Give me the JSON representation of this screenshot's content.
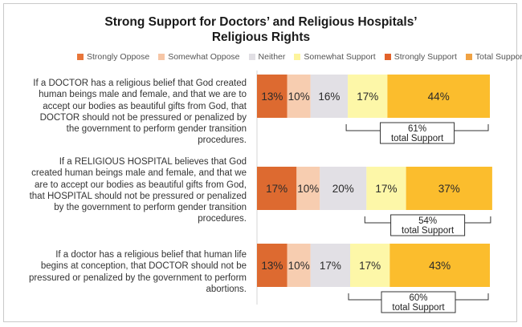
{
  "title_line1": "Strong Support for Doctors’ and Religious Hospitals’",
  "title_line2": "Religious Rights",
  "legend": [
    {
      "label": "Strongly Oppose",
      "color": "#e8763a"
    },
    {
      "label": "Somewhat Oppose",
      "color": "#f6c6a6"
    },
    {
      "label": "Neither",
      "color": "#e1dfe4"
    },
    {
      "label": "Somewhat Support",
      "color": "#fdf49c"
    },
    {
      "label": "Strongly Support",
      "color": "#e2622a"
    },
    {
      "label": "Total Support",
      "color": "#f0a243"
    }
  ],
  "questions": [
    {
      "lines": [
        "If a DOCTOR has a religious belief that God created",
        "human beings male and female, and that we are to",
        "accept our bodies as beautiful gifts from God, that",
        "DOCTOR should not be pressured or penalized by",
        "the government to perform gender transition",
        "procedures."
      ]
    },
    {
      "lines": [
        "If a RELIGIOUS HOSPITAL believes that God",
        "created human beings male and female, and that we",
        "are to accept our bodies as beautiful gifts from God,",
        "that HOSPITAL should not be pressured or penalized",
        "by the government to perform gender transition",
        "procedures."
      ]
    },
    {
      "lines": [
        "If a doctor has a religious belief that human life",
        "begins at conception, that DOCTOR should not be",
        "pressured or penalized by the government to perform",
        "abortions."
      ]
    }
  ],
  "chart_data": {
    "type": "bar",
    "orientation": "horizontal-stacked",
    "series_colors": [
      "#dd6a30",
      "#f7cdb0",
      "#e2e0e5",
      "#fdf7a8",
      "#fbbd2d"
    ],
    "rows": [
      {
        "values": [
          13,
          10,
          16,
          17,
          44
        ],
        "labels": [
          "13%",
          "10%",
          "16%",
          "17%",
          "44%"
        ],
        "total_pct": "61%",
        "total_label": "total Support"
      },
      {
        "values": [
          17,
          10,
          20,
          17,
          37
        ],
        "labels": [
          "17%",
          "10%",
          "20%",
          "17%",
          "37%"
        ],
        "total_pct": "54%",
        "total_label": "total Support"
      },
      {
        "values": [
          13,
          10,
          17,
          17,
          43
        ],
        "labels": [
          "13%",
          "10%",
          "17%",
          "17%",
          "43%"
        ],
        "total_pct": "60%",
        "total_label": "total Support"
      }
    ]
  }
}
